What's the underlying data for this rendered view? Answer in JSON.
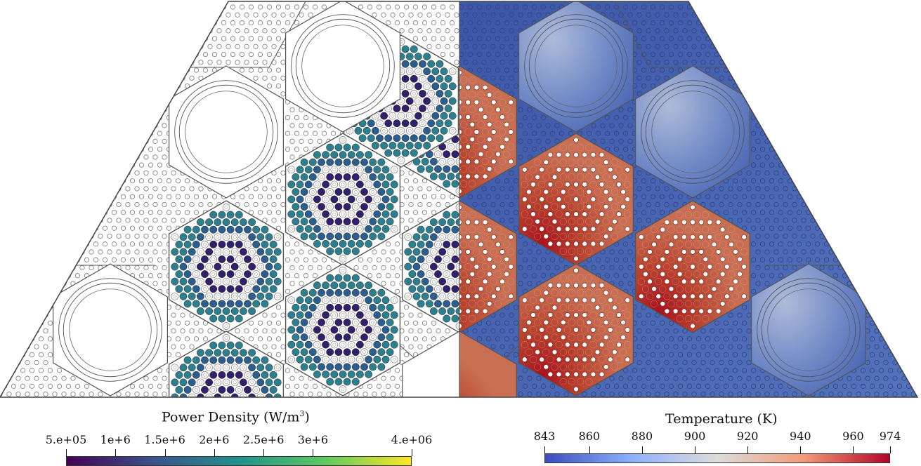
{
  "power_bar": {
    "title_main": "Power Density (W/m",
    "title_sup": "3",
    "title_close": ")",
    "ticks": [
      "5.e+05",
      "1e+6",
      "1.5e+6",
      "2e+6",
      "2.5e+6",
      "3e+6",
      "4.e+06"
    ],
    "tick_values": [
      500000,
      1000000,
      1500000,
      2000000,
      2500000,
      3000000,
      4000000
    ],
    "range": [
      500000,
      4000000
    ],
    "colormap": [
      "#440154",
      "#3b528b",
      "#21918c",
      "#5ec962",
      "#fde725"
    ]
  },
  "temp_bar": {
    "title": "Temperature (K)",
    "ticks": [
      "843",
      "860",
      "880",
      "900",
      "920",
      "940",
      "960",
      "974"
    ],
    "tick_values": [
      843,
      860,
      880,
      900,
      920,
      940,
      960,
      974
    ],
    "range": [
      843,
      974
    ],
    "colormap": [
      "#3b4cc0",
      "#8db0fe",
      "#dddcdc",
      "#f49a7b",
      "#b40426"
    ]
  },
  "colors": {
    "reflector_blue": "#4a68b4",
    "fuel_hot": "#b9432e",
    "fuel_warm": "#c8694e",
    "pin_fill": "#31206a",
    "hex_edge": "#555555"
  }
}
